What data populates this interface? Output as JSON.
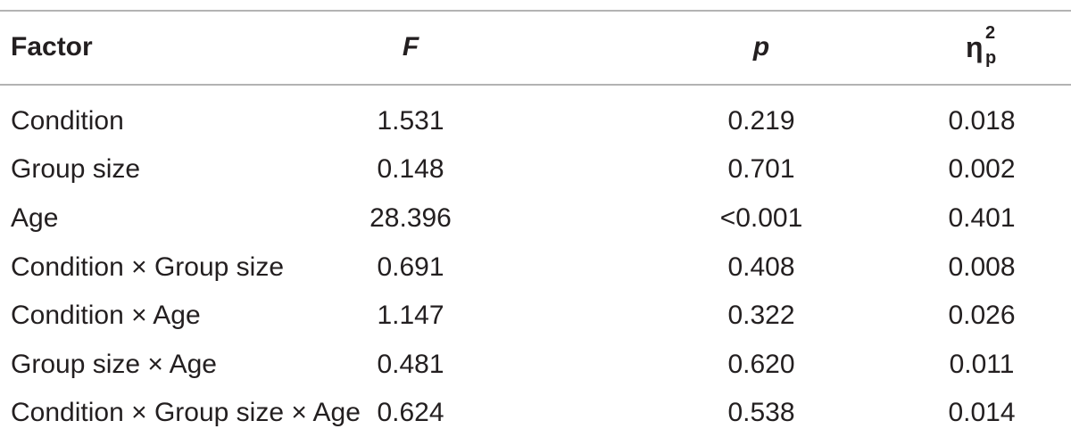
{
  "table": {
    "headers": {
      "factor": "Factor",
      "f": "F",
      "p": "p",
      "eta_symbol": "η",
      "eta_sup": "2",
      "eta_sub": "p"
    },
    "rows": [
      {
        "factor": "Condition",
        "f": "1.531",
        "p": "0.219",
        "eta": "0.018"
      },
      {
        "factor": "Group size",
        "f": "0.148",
        "p": "0.701",
        "eta": "0.002"
      },
      {
        "factor": "Age",
        "f": "28.396",
        "p": "<0.001",
        "eta": "0.401"
      },
      {
        "factor": "Condition × Group size",
        "f": "0.691",
        "p": "0.408",
        "eta": "0.008"
      },
      {
        "factor": "Condition × Age",
        "f": "1.147",
        "p": "0.322",
        "eta": "0.026"
      },
      {
        "factor": "Group size × Age",
        "f": "0.481",
        "p": "0.620",
        "eta": "0.011"
      },
      {
        "factor": "Condition × Group size × Age",
        "f": "0.624",
        "p": "0.538",
        "eta": "0.014"
      }
    ]
  }
}
